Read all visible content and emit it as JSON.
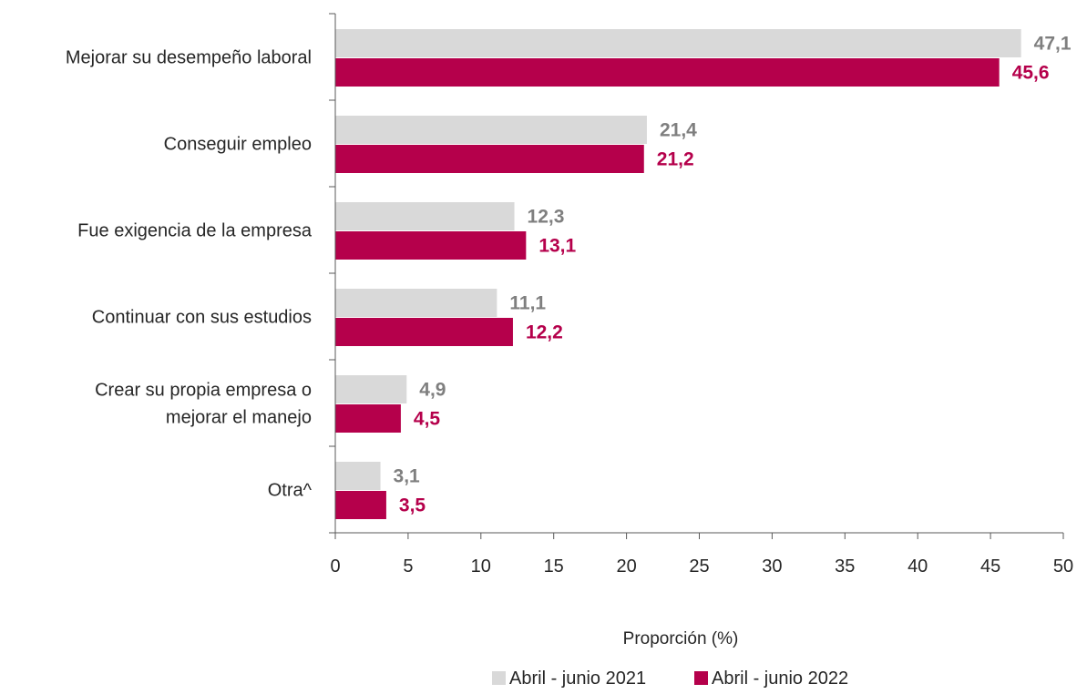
{
  "chart_data": {
    "type": "bar",
    "orientation": "horizontal",
    "categories": [
      [
        "Mejorar su desempeño laboral"
      ],
      [
        "Conseguir empleo"
      ],
      [
        "Fue exigencia de la empresa"
      ],
      [
        "Continuar con sus estudios"
      ],
      [
        "Crear su propia empresa o",
        "mejorar el manejo"
      ],
      [
        "Otra^"
      ]
    ],
    "series": [
      {
        "name": "Abril - junio 2021",
        "values": [
          47.1,
          21.4,
          12.3,
          11.1,
          4.9,
          3.1
        ],
        "labels": [
          "47,1",
          "21,4",
          "12,3",
          "11,1",
          "4,9",
          "3,1"
        ],
        "color": "#d9d9d9",
        "label_color": "#7f7f7f"
      },
      {
        "name": "Abril - junio 2022",
        "values": [
          45.6,
          21.2,
          13.1,
          12.2,
          4.5,
          3.5
        ],
        "labels": [
          "45,6",
          "21,2",
          "13,1",
          "12,2",
          "4,5",
          "3,5"
        ],
        "color": "#b5004b",
        "label_color": "#b5004b"
      }
    ],
    "xticks": [
      "0",
      "5",
      "10",
      "15",
      "20",
      "25",
      "30",
      "35",
      "40",
      "45",
      "50"
    ],
    "xlim": [
      0,
      50
    ],
    "xlabel": "Proporción (%)",
    "ylabel": "",
    "title": "",
    "grid": false,
    "legend": "bottom"
  }
}
